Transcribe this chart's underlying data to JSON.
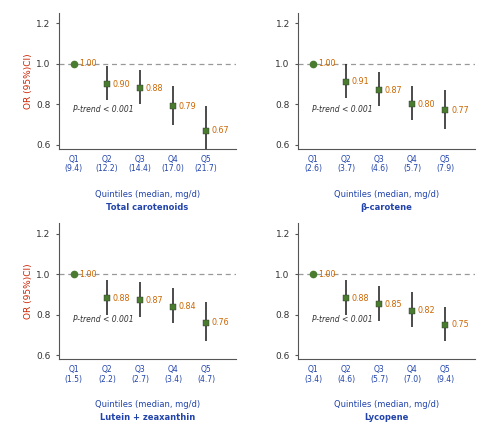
{
  "subplots": [
    {
      "title": "Total carotenoids",
      "xlabel_line1": "Quintiles (median, mg/d)",
      "xlabel_line2": "Total carotenoids",
      "quintile_q": [
        "Q1",
        "Q2",
        "Q3",
        "Q4",
        "Q5"
      ],
      "quintile_val": [
        "(9.4)",
        "(12.2)",
        "(14.4)",
        "(17.0)",
        "(21.7)"
      ],
      "or_values": [
        1.0,
        0.9,
        0.88,
        0.79,
        0.67
      ],
      "ci_lower": [
        1.0,
        0.82,
        0.8,
        0.7,
        0.57
      ],
      "ci_upper": [
        1.0,
        0.99,
        0.97,
        0.89,
        0.79
      ],
      "p_trend": "P-trend < 0.001",
      "ylim": [
        0.58,
        1.25
      ],
      "yticks": [
        0.6,
        0.8,
        1.0,
        1.2
      ]
    },
    {
      "title": "β-carotene",
      "xlabel_line1": "Quintiles (median, mg/d)",
      "xlabel_line2": "β-carotene",
      "quintile_q": [
        "Q1",
        "Q2",
        "Q3",
        "Q4",
        "Q5"
      ],
      "quintile_val": [
        "(2.6)",
        "(3.7)",
        "(4.6)",
        "(5.7)",
        "(7.9)"
      ],
      "or_values": [
        1.0,
        0.91,
        0.87,
        0.8,
        0.77
      ],
      "ci_lower": [
        1.0,
        0.83,
        0.79,
        0.72,
        0.68
      ],
      "ci_upper": [
        1.0,
        1.0,
        0.96,
        0.89,
        0.87
      ],
      "p_trend": "P-trend < 0.001",
      "ylim": [
        0.58,
        1.25
      ],
      "yticks": [
        0.6,
        0.8,
        1.0,
        1.2
      ]
    },
    {
      "title": "Lutein + zeaxanthin",
      "xlabel_line1": "Quintiles (median, mg/d)",
      "xlabel_line2": "Lutein + zeaxanthin",
      "quintile_q": [
        "Q1",
        "Q2",
        "Q3",
        "Q4",
        "Q5"
      ],
      "quintile_val": [
        "(1.5)",
        "(2.2)",
        "(2.7)",
        "(3.4)",
        "(4.7)"
      ],
      "or_values": [
        1.0,
        0.88,
        0.87,
        0.84,
        0.76
      ],
      "ci_lower": [
        1.0,
        0.8,
        0.79,
        0.76,
        0.67
      ],
      "ci_upper": [
        1.0,
        0.97,
        0.96,
        0.93,
        0.86
      ],
      "p_trend": "P-trend < 0.001",
      "ylim": [
        0.58,
        1.25
      ],
      "yticks": [
        0.6,
        0.8,
        1.0,
        1.2
      ]
    },
    {
      "title": "Lycopene",
      "xlabel_line1": "Quintiles (median, mg/d)",
      "xlabel_line2": "Lycopene",
      "quintile_q": [
        "Q1",
        "Q2",
        "Q3",
        "Q4",
        "Q5"
      ],
      "quintile_val": [
        "(3.4)",
        "(4.6)",
        "(5.7)",
        "(7.0)",
        "(9.4)"
      ],
      "or_values": [
        1.0,
        0.88,
        0.85,
        0.82,
        0.75
      ],
      "ci_lower": [
        1.0,
        0.8,
        0.77,
        0.74,
        0.67
      ],
      "ci_upper": [
        1.0,
        0.97,
        0.94,
        0.91,
        0.84
      ],
      "p_trend": "P-trend < 0.001",
      "ylim": [
        0.58,
        1.25
      ],
      "yticks": [
        0.6,
        0.8,
        1.0,
        1.2
      ]
    }
  ],
  "marker_green": "#4a7c2f",
  "error_color": "#1a1a1a",
  "label_color_or": "#cc6600",
  "label_color_q": "#2244aa",
  "label_color_val": "#2244aa",
  "ref_line_color": "#999999",
  "ylabel": "OR (95%)CI)",
  "ylabel_color": "#cc2200",
  "background_color": "#ffffff",
  "border_color": "#555555",
  "p_trend_color": "#333333"
}
